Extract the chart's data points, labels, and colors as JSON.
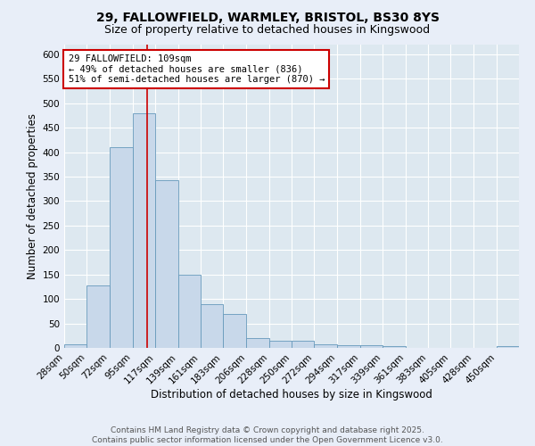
{
  "title1": "29, FALLOWFIELD, WARMLEY, BRISTOL, BS30 8YS",
  "title2": "Size of property relative to detached houses in Kingswood",
  "xlabel": "Distribution of detached houses by size in Kingswood",
  "ylabel": "Number of detached properties",
  "bar_edges": [
    28,
    50,
    72,
    95,
    117,
    139,
    161,
    183,
    206,
    228,
    250,
    272,
    294,
    317,
    339,
    361,
    383,
    405,
    428,
    450,
    472
  ],
  "bar_heights": [
    8,
    128,
    410,
    480,
    343,
    150,
    90,
    70,
    20,
    15,
    15,
    8,
    5,
    5,
    3,
    0,
    0,
    0,
    0,
    3
  ],
  "bar_color": "#c8d8ea",
  "bar_edgecolor": "#6699bb",
  "redline_x": 109,
  "annotation_text": "29 FALLOWFIELD: 109sqm\n← 49% of detached houses are smaller (836)\n51% of semi-detached houses are larger (870) →",
  "annotation_box_color": "#ffffff",
  "annotation_box_edgecolor": "#cc0000",
  "redline_color": "#cc0000",
  "ylim": [
    0,
    620
  ],
  "yticks": [
    0,
    50,
    100,
    150,
    200,
    250,
    300,
    350,
    400,
    450,
    500,
    550,
    600
  ],
  "bg_color": "#dde8f0",
  "grid_color": "#ffffff",
  "fig_bg_color": "#e8eef8",
  "footer": "Contains HM Land Registry data © Crown copyright and database right 2025.\nContains public sector information licensed under the Open Government Licence v3.0.",
  "title1_fontsize": 10,
  "title2_fontsize": 9,
  "xlabel_fontsize": 8.5,
  "ylabel_fontsize": 8.5,
  "tick_fontsize": 7.5,
  "annotation_fontsize": 7.5,
  "footer_fontsize": 6.5
}
